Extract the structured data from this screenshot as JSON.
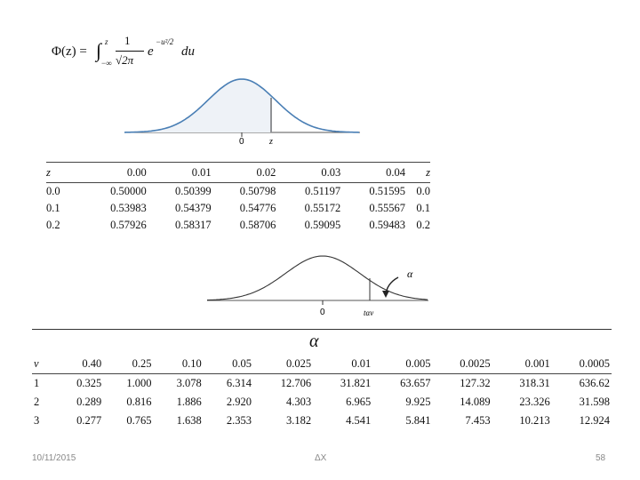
{
  "formula": {
    "lhs": "Φ(z) =",
    "integral": "∫",
    "upper": "z",
    "lower": "−∞",
    "numerator": "1",
    "denominator": "√2π",
    "exp_base": "e",
    "exp_power": "−u²/2",
    "du": "du"
  },
  "normal_curve": {
    "zero_label": "0",
    "z_label": "z",
    "color": "#4a7fb5"
  },
  "z_table": {
    "headers": [
      "z",
      "0.00",
      "0.01",
      "0.02",
      "0.03",
      "0.04",
      "z"
    ],
    "rows": [
      [
        "0.0",
        "0.50000",
        "0.50399",
        "0.50798",
        "0.51197",
        "0.51595",
        "0.0"
      ],
      [
        "0.1",
        "0.53983",
        "0.54379",
        "0.54776",
        "0.55172",
        "0.55567",
        "0.1"
      ],
      [
        "0.2",
        "0.57926",
        "0.58317",
        "0.58706",
        "0.59095",
        "0.59483",
        "0.2"
      ]
    ]
  },
  "t_curve": {
    "zero_label": "0",
    "t_label": "tαv",
    "alpha_label": "α"
  },
  "t_table": {
    "title": "α",
    "headers": [
      "v",
      "0.40",
      "0.25",
      "0.10",
      "0.05",
      "0.025",
      "0.01",
      "0.005",
      "0.0025",
      "0.001",
      "0.0005"
    ],
    "rows": [
      [
        "1",
        "0.325",
        "1.000",
        "3.078",
        "6.314",
        "12.706",
        "31.821",
        "63.657",
        "127.32",
        "318.31",
        "636.62"
      ],
      [
        "2",
        "0.289",
        "0.816",
        "1.886",
        "2.920",
        "4.303",
        "6.965",
        "9.925",
        "14.089",
        "23.326",
        "31.598"
      ],
      [
        "3",
        "0.277",
        "0.765",
        "1.638",
        "2.353",
        "3.182",
        "4.541",
        "5.841",
        "7.453",
        "10.213",
        "12.924"
      ]
    ]
  },
  "footer": {
    "date": "10/11/2015",
    "center": "ΔX",
    "page": "58"
  }
}
